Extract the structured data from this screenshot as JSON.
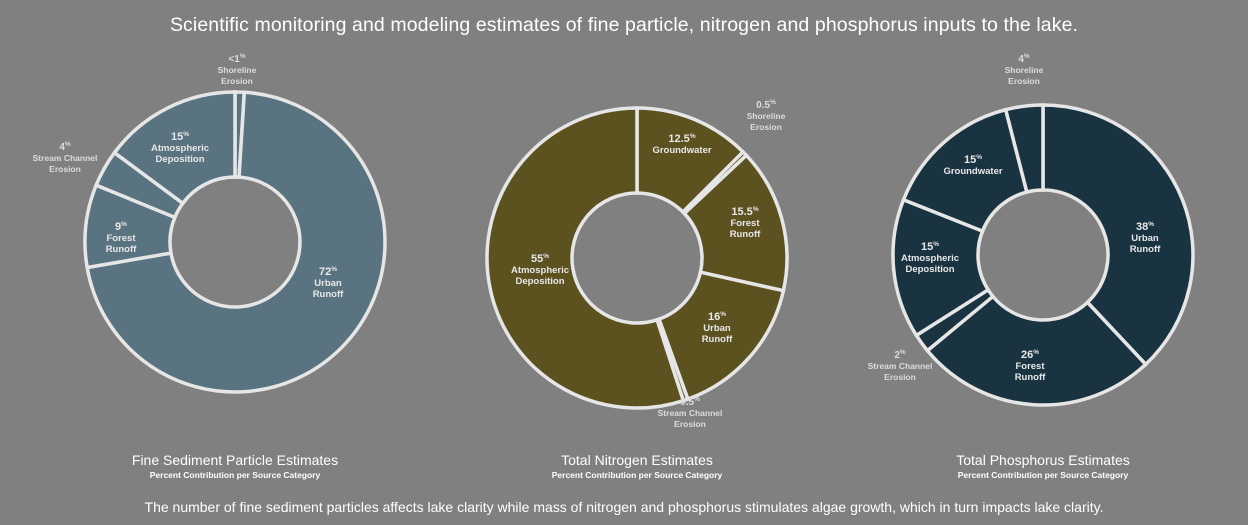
{
  "title": "Scientific monitoring and modeling estimates of fine particle, nitrogen and phosphorus inputs to the lake.",
  "footer": "The number of fine sediment particles affects lake clarity while mass of nitrogen and phosphorus stimulates algae growth, which in turn impacts lake clarity.",
  "chart_data": [
    {
      "type": "pie",
      "variant": "donut",
      "title": "Fine Sediment Particle Estimates",
      "subtitle": "Percent Contribution per Source Category",
      "color": "#5a7380",
      "slices": [
        {
          "value": "<1",
          "label": [
            "Shoreline",
            "Erosion"
          ],
          "numeric": 1
        },
        {
          "value": "72",
          "label": [
            "Urban",
            "Runoff"
          ],
          "numeric": 72
        },
        {
          "value": "9",
          "label": [
            "Forest",
            "Runoff"
          ],
          "numeric": 9
        },
        {
          "value": "4",
          "label": [
            "Stream Channel",
            "Erosion"
          ],
          "numeric": 4
        },
        {
          "value": "15",
          "label": [
            "Atmospheric",
            "Deposition"
          ],
          "numeric": 15
        }
      ]
    },
    {
      "type": "pie",
      "variant": "donut",
      "title": "Total Nitrogen Estimates",
      "subtitle": "Percent Contribution per Source Category",
      "color": "#5b5220",
      "slices": [
        {
          "value": "12.5",
          "label": [
            "Groundwater"
          ],
          "numeric": 12.5
        },
        {
          "value": "0.5",
          "label": [
            "Shoreline",
            "Erosion"
          ],
          "numeric": 0.5
        },
        {
          "value": "15.5",
          "label": [
            "Forest",
            "Runoff"
          ],
          "numeric": 15.5
        },
        {
          "value": "16",
          "label": [
            "Urban",
            "Runoff"
          ],
          "numeric": 16
        },
        {
          "value": "0.5",
          "label": [
            "Stream Channel",
            "Erosion"
          ],
          "numeric": 0.5
        },
        {
          "value": "55",
          "label": [
            "Atmospheric",
            "Deposition"
          ],
          "numeric": 55
        }
      ]
    },
    {
      "type": "pie",
      "variant": "donut",
      "title": "Total Phosphorus Estimates",
      "subtitle": "Percent Contribution per Source Category",
      "color": "#1a3341",
      "slices": [
        {
          "value": "38",
          "label": [
            "Urban",
            "Runoff"
          ],
          "numeric": 38
        },
        {
          "value": "26",
          "label": [
            "Forest",
            "Runoff"
          ],
          "numeric": 26
        },
        {
          "value": "2",
          "label": [
            "Stream Channel",
            "Erosion"
          ],
          "numeric": 2
        },
        {
          "value": "15",
          "label": [
            "Atmospheric",
            "Deposition"
          ],
          "numeric": 15
        },
        {
          "value": "15",
          "label": [
            "Groundwater"
          ],
          "numeric": 15
        },
        {
          "value": "4",
          "label": [
            "Shoreline",
            "Erosion"
          ],
          "numeric": 4
        }
      ]
    }
  ]
}
